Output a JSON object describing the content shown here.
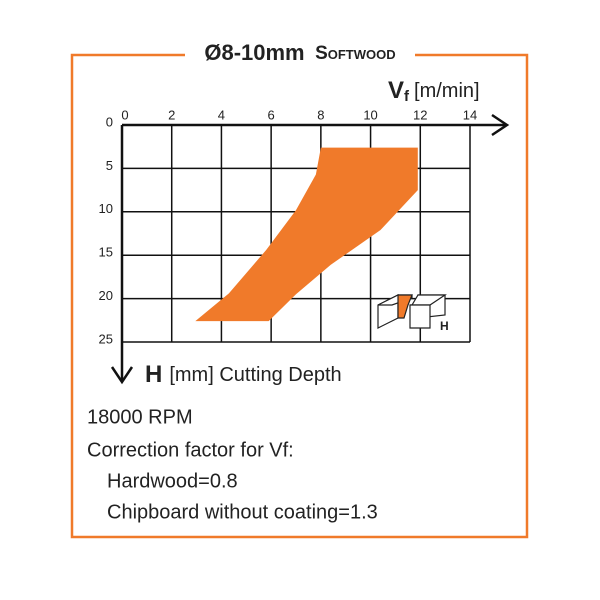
{
  "chart_data": {
    "type": "region",
    "title": "Ø8-10mm",
    "subtitle": "Softwood",
    "x_label_symbol": "V",
    "x_label_sub": "f",
    "x_label_unit": "[m/min]",
    "y_label_symbol": "H",
    "y_label_text": "[mm] Cutting Depth",
    "x": [
      8,
      11.9,
      11.9,
      10.4,
      8.4,
      7,
      5.9,
      2.95,
      4.3,
      5.8,
      7,
      7.8
    ],
    "values": [
      2.6,
      2.6,
      7.5,
      12.1,
      16.1,
      19.5,
      22.6,
      22.6,
      19.4,
      14.4,
      9.8,
      5.7
    ],
    "color": "#f07a2a",
    "xlim": [
      0,
      14
    ],
    "xticks": [
      0,
      2,
      4,
      6,
      8,
      10,
      12,
      14
    ],
    "ylim": [
      0,
      25
    ],
    "yticks": [
      0,
      5,
      10,
      15,
      20,
      25
    ],
    "grid": true,
    "icon_label": "H",
    "notes": [
      "18000 RPM",
      "Correction factor for Vf:",
      "Hardwood=0.8",
      "Chipboard without coating=1.3"
    ]
  }
}
